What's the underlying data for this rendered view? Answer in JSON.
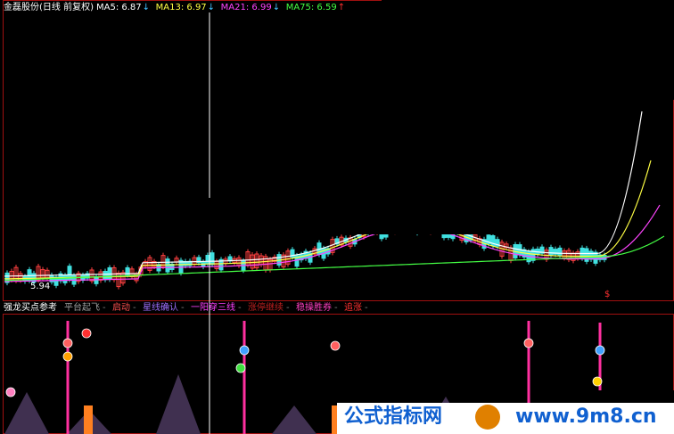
{
  "header": {
    "title": "金磊股份(日线 前复权)",
    "indicators": [
      {
        "label": "MA5: 6.87",
        "trend": "↓",
        "color": "#ffffff"
      },
      {
        "label": "MA13: 6.97",
        "trend": "↓",
        "color": "#ffff44"
      },
      {
        "label": "MA21: 6.99",
        "trend": "↓",
        "color": "#ff44ff"
      },
      {
        "label": "MA75: 6.59",
        "trend": "↑",
        "color": "#44ff44"
      }
    ]
  },
  "price_panel": {
    "low_label": "5.94",
    "mark": "$"
  },
  "signal_panel": {
    "title": "强龙买点参考",
    "legend": [
      {
        "label": "平台起飞",
        "color": "#a0a0a0"
      },
      {
        "label": "启动",
        "color": "#ff5050"
      },
      {
        "label": "星线确认",
        "color": "#a070ff"
      },
      {
        "label": "一阳穿三线",
        "color": "#ff40ff"
      },
      {
        "label": "涨停继续",
        "color": "#c02020"
      },
      {
        "label": "稳操胜券",
        "color": "#ff40c0"
      },
      {
        "label": "追涨",
        "color": "#ff3030"
      }
    ]
  },
  "watermark": {
    "name": "公式指标网",
    "url": "www.9m8.cn"
  }
}
